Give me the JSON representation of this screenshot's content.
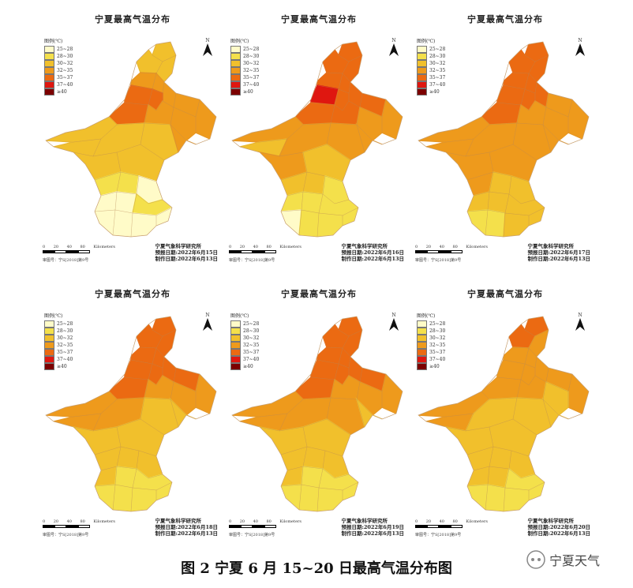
{
  "panels": [
    {
      "title": "宁夏最高气温分布",
      "forecast_date": "预报日期:2022年6月15日",
      "made_date": "制作日期:2022年6月13日",
      "levels": [
        2,
        2,
        2,
        3,
        3,
        3,
        4,
        4,
        3,
        3,
        4,
        3,
        3,
        2,
        2,
        2,
        2,
        3,
        2,
        2,
        1,
        1,
        0,
        0,
        0,
        1,
        0,
        0,
        0,
        0
      ]
    },
    {
      "title": "宁夏最高气温分布",
      "forecast_date": "预报日期:2022年6月16日",
      "made_date": "制作日期:2022年6月13日",
      "levels": [
        4,
        4,
        4,
        4,
        4,
        4,
        5,
        4,
        4,
        3,
        4,
        4,
        3,
        3,
        2,
        3,
        3,
        3,
        3,
        2,
        2,
        2,
        1,
        1,
        1,
        1,
        0,
        1,
        1,
        1
      ]
    },
    {
      "title": "宁夏最高气温分布",
      "forecast_date": "预报日期:2022年6月17日",
      "made_date": "制作日期:2022年6月13日",
      "levels": [
        4,
        4,
        4,
        4,
        4,
        4,
        4,
        4,
        3,
        3,
        4,
        3,
        3,
        3,
        3,
        3,
        3,
        3,
        3,
        3,
        3,
        2,
        2,
        2,
        2,
        2,
        1,
        1,
        2,
        2
      ]
    },
    {
      "title": "宁夏最高气温分布",
      "forecast_date": "预报日期:2022年6月18日",
      "made_date": "制作日期:2022年6月13日",
      "levels": [
        4,
        4,
        4,
        4,
        4,
        4,
        4,
        4,
        4,
        3,
        4,
        3,
        3,
        3,
        3,
        3,
        2,
        2,
        2,
        2,
        2,
        2,
        2,
        2,
        1,
        1,
        1,
        1,
        1,
        1
      ]
    },
    {
      "title": "宁夏最高气温分布",
      "forecast_date": "预报日期:2022年6月19日",
      "made_date": "制作日期:2022年6月13日",
      "levels": [
        4,
        4,
        4,
        4,
        4,
        4,
        4,
        4,
        4,
        3,
        4,
        3,
        3,
        3,
        3,
        3,
        3,
        2,
        2,
        2,
        2,
        2,
        2,
        2,
        1,
        1,
        1,
        1,
        1,
        1
      ]
    },
    {
      "title": "宁夏最高气温分布",
      "forecast_date": "预报日期:2022年6月20日",
      "made_date": "制作日期:2022年6月13日",
      "levels": [
        4,
        4,
        3,
        3,
        3,
        3,
        3,
        3,
        3,
        3,
        3,
        3,
        2,
        3,
        3,
        2,
        2,
        2,
        2,
        2,
        2,
        2,
        2,
        2,
        2,
        1,
        1,
        1,
        1,
        1
      ]
    }
  ],
  "legend": {
    "header": "图例(℃)",
    "items": [
      {
        "label": "25~28",
        "color": "#fffbc8"
      },
      {
        "label": "28~30",
        "color": "#f4e04b"
      },
      {
        "label": "30~32",
        "color": "#f1c02c"
      },
      {
        "label": "32~35",
        "color": "#ee9a1c"
      },
      {
        "label": "35~37",
        "color": "#eb6a12"
      },
      {
        "label": "37~40",
        "color": "#df1710"
      },
      {
        "label": "≥40",
        "color": "#7c0000"
      }
    ]
  },
  "north_letter": "N",
  "scale": {
    "labels": [
      "0",
      "20",
      "40",
      "80"
    ],
    "unit": "Kilometers"
  },
  "audit_no": "审图号：宁S[2018]第9号",
  "institute": "宁夏气象科学研究所",
  "caption": "图 2 宁夏 6 月 15~20 日最高气温分布图",
  "brand": "宁夏天气"
}
